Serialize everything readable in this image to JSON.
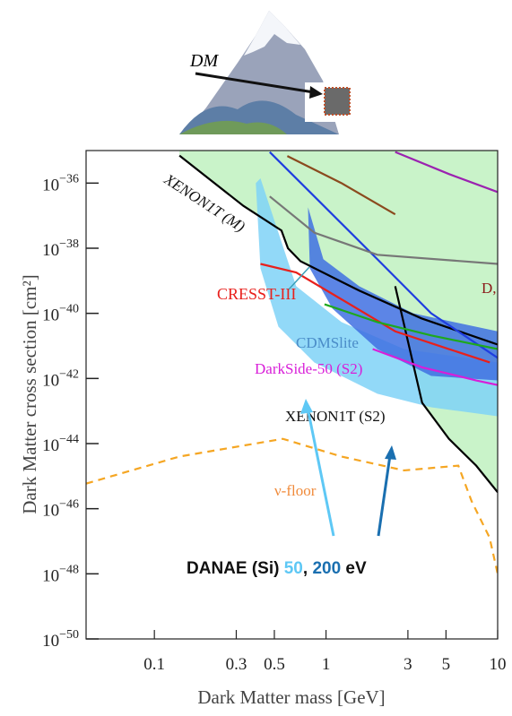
{
  "illustration": {
    "label": "DM"
  },
  "chart_data": {
    "type": "line",
    "x_label": "Dark Matter mass [GeV]",
    "y_label": "Dark Matter cross section [cm²]",
    "log_x": true,
    "log_y": true,
    "xlim": [
      0.04,
      10
    ],
    "ylim": [
      1e-50,
      1e-35
    ],
    "xticks": [
      0.1,
      0.3,
      0.5,
      1,
      3,
      5,
      10
    ],
    "yticks": [
      {
        "value": 1e-36,
        "label": "10−36"
      },
      {
        "value": 1e-38,
        "label": "10−38"
      },
      {
        "value": 1e-40,
        "label": "10−40"
      },
      {
        "value": 1e-42,
        "label": "10−42"
      },
      {
        "value": 1e-44,
        "label": "10−44"
      },
      {
        "value": 1e-46,
        "label": "10−46"
      },
      {
        "value": 1e-48,
        "label": "10−48"
      },
      {
        "value": 1e-50,
        "label": "10−50"
      }
    ],
    "excluded_color": "#c9f3c9",
    "series": [
      {
        "name": "XENON1T (M)",
        "color": "#000000",
        "x": [
          0.14,
          0.33,
          0.55,
          0.6,
          0.71,
          1.56,
          3.6,
          10
        ],
        "values": [
          7e-36,
          2e-37,
          3.5e-38,
          1e-38,
          4e-39,
          5e-40,
          7e-41,
          1.1e-41
        ]
      },
      {
        "name": "XENON1T (S2)",
        "color": "#000000",
        "x": [
          2.53,
          3.63,
          5.2,
          7.5,
          10
        ],
        "values": [
          6.8e-40,
          1.8e-43,
          1.4e-44,
          2.1e-45,
          3.2e-46
        ]
      },
      {
        "name": "CRESST-III",
        "color": "#e8201c",
        "x": [
          0.415,
          0.67,
          1.23,
          2.53,
          5.2,
          9
        ],
        "values": [
          3.3e-39,
          1.8e-39,
          2.7e-40,
          2.8e-41,
          8e-42,
          3.1e-42
        ]
      },
      {
        "color": "#1f3de0",
        "x": [
          0.47,
          0.855,
          1.99,
          4.1,
          10
        ],
        "values": [
          9e-36,
          3.9e-37,
          4.6e-39,
          1e-40,
          4.3e-42
        ]
      },
      {
        "color": "#9b22b0",
        "x": [
          2.53,
          5.2,
          10
        ],
        "values": [
          9e-36,
          1.9e-36,
          5.3e-37
        ]
      },
      {
        "color": "#8b4a1e",
        "x": [
          0.595,
          1.23,
          2.53
        ],
        "values": [
          6.8e-36,
          1e-36,
          1.1e-37
        ]
      },
      {
        "color": "#777777",
        "x": [
          0.47,
          0.855,
          1.99,
          10
        ],
        "values": [
          3.9e-37,
          3e-38,
          6.3e-39,
          3.3e-39
        ]
      },
      {
        "color": "#1ea81e",
        "x": [
          0.98,
          1.99,
          4.1,
          10
        ],
        "values": [
          1.9e-40,
          5.4e-41,
          2.1e-41,
          8e-42
        ]
      },
      {
        "name": "DarkSide-50 (S2)",
        "color": "#d81ed8",
        "x": [
          1.87,
          3.63,
          7.5,
          10
        ],
        "values": [
          8e-42,
          2.2e-42,
          8.7e-43,
          6.3e-43
        ]
      },
      {
        "name": "ν-floor",
        "color": "#f5a623",
        "dashed": true,
        "x": [
          0.04,
          0.14,
          0.56,
          1.23,
          2.85,
          5.9,
          7.05,
          8.97,
          10
        ],
        "values": [
          5.9e-46,
          4e-45,
          1.4e-44,
          4e-45,
          1.5e-45,
          2.1e-45,
          1.7e-46,
          1.3e-47,
          1e-48
        ]
      },
      {
        "type": "band",
        "color": "#7fd2f7",
        "x": [
          0.39,
          0.415,
          0.528,
          0.855,
          1.99,
          4.1,
          10
        ],
        "values": [
          1e-36,
          2.4e-39,
          3.9e-41,
          3.1e-42,
          3.4e-43,
          1.3e-43,
          6.9e-44
        ],
        "x_upper": [
          0.415,
          0.528,
          0.67,
          1.23,
          2.85,
          10
        ],
        "values_upper": [
          1.4e-36,
          3e-38,
          6.8e-40,
          5.4e-41,
          8e-42,
          3.1e-42
        ]
      },
      {
        "type": "band",
        "color": "#3f70e2",
        "x": [
          0.786,
          0.805,
          1.09,
          1.99,
          4.1,
          10
        ],
        "values": [
          1.5e-37,
          2.4e-39,
          1.4e-40,
          8e-42,
          1.2e-42,
          8.7e-43
        ],
        "x_upper": [
          0.786,
          0.965,
          1.56,
          3.22,
          10
        ],
        "values_upper": [
          1.8e-37,
          4.6e-39,
          6.8e-40,
          1e-40,
          2.8e-41
        ]
      }
    ],
    "annotations": [
      {
        "text": "CDMSlite",
        "color": "#4a8cc8"
      },
      {
        "text": "D,",
        "color": "#8b1a1a"
      }
    ],
    "danae": {
      "name": "DANAE (Si)",
      "thresholds": [
        50,
        200
      ],
      "separator": ",",
      "unit": "eV",
      "colors": [
        "#5ec8f5",
        "#1a6fb0"
      ]
    }
  }
}
